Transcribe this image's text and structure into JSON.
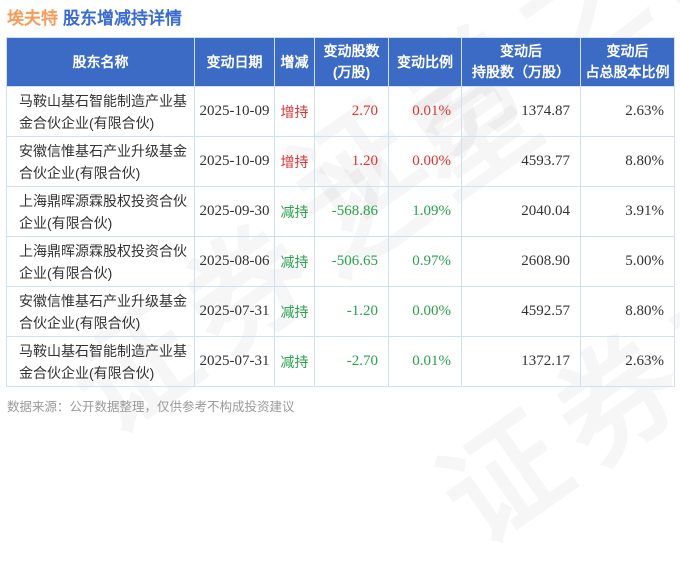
{
  "page": {
    "title_stock": "埃夫特",
    "title_rest": "股东增减持详情",
    "watermark": "证券之星",
    "footer": "数据来源：公开数据整理，仅供参考不构成投资建议"
  },
  "colors": {
    "header_bg": "#3b6bc4",
    "title_orange": "#f99b56",
    "title_blue": "#3a6bd0",
    "increase_red": "#e23333",
    "decrease_green": "#2ba24c",
    "border_light_blue": "#cfe0f2"
  },
  "table": {
    "headers": [
      "股东名称",
      "变动日期",
      "增减",
      "变动股数\n(万股)",
      "变动比例",
      "变动后\n持股数（万股）",
      "变动后\n占总股本比例"
    ],
    "rows": [
      {
        "name": "马鞍山基石智能制造产业基金合伙企业(有限合伙)",
        "date": "2025-10-09",
        "action": "增持",
        "change_shares": "2.70",
        "change_ratio": "0.01%",
        "after_shares": "1374.87",
        "after_ratio": "2.63%"
      },
      {
        "name": "安徽信惟基石产业升级基金合伙企业(有限合伙)",
        "date": "2025-10-09",
        "action": "增持",
        "change_shares": "1.20",
        "change_ratio": "0.00%",
        "after_shares": "4593.77",
        "after_ratio": "8.80%"
      },
      {
        "name": "上海鼎晖源霖股权投资合伙企业(有限合伙)",
        "date": "2025-09-30",
        "action": "减持",
        "change_shares": "-568.86",
        "change_ratio": "1.09%",
        "after_shares": "2040.04",
        "after_ratio": "3.91%"
      },
      {
        "name": "上海鼎晖源霖股权投资合伙企业(有限合伙)",
        "date": "2025-08-06",
        "action": "减持",
        "change_shares": "-506.65",
        "change_ratio": "0.97%",
        "after_shares": "2608.90",
        "after_ratio": "5.00%"
      },
      {
        "name": "安徽信惟基石产业升级基金合伙企业(有限合伙)",
        "date": "2025-07-31",
        "action": "减持",
        "change_shares": "-1.20",
        "change_ratio": "0.00%",
        "after_shares": "4592.57",
        "after_ratio": "8.80%"
      },
      {
        "name": "马鞍山基石智能制造产业基金合伙企业(有限合伙)",
        "date": "2025-07-31",
        "action": "减持",
        "change_shares": "-2.70",
        "change_ratio": "0.01%",
        "after_shares": "1372.17",
        "after_ratio": "2.63%"
      }
    ]
  }
}
